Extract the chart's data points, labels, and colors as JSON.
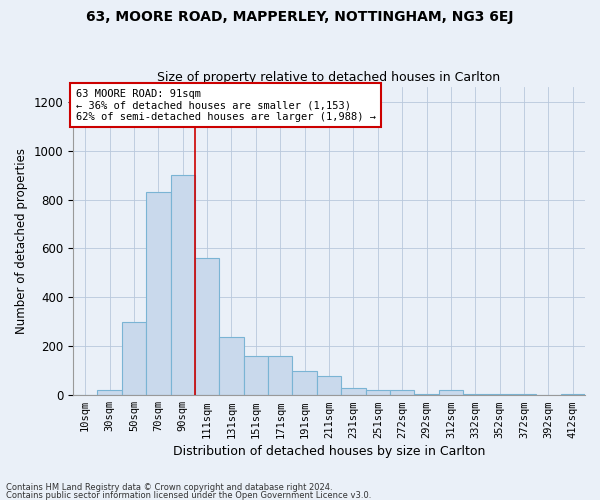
{
  "title1": "63, MOORE ROAD, MAPPERLEY, NOTTINGHAM, NG3 6EJ",
  "title2": "Size of property relative to detached houses in Carlton",
  "xlabel": "Distribution of detached houses by size in Carlton",
  "ylabel": "Number of detached properties",
  "bar_labels": [
    "10sqm",
    "30sqm",
    "50sqm",
    "70sqm",
    "90sqm",
    "111sqm",
    "131sqm",
    "151sqm",
    "171sqm",
    "191sqm",
    "211sqm",
    "231sqm",
    "251sqm",
    "272sqm",
    "292sqm",
    "312sqm",
    "332sqm",
    "352sqm",
    "372sqm",
    "392sqm",
    "412sqm"
  ],
  "bar_values": [
    0,
    20,
    300,
    830,
    900,
    560,
    240,
    160,
    160,
    100,
    80,
    30,
    20,
    20,
    5,
    20,
    5,
    5,
    5,
    0,
    5
  ],
  "bar_color": "#c9d9ec",
  "bar_edge_color": "#7ab4d4",
  "property_line_x": 4.5,
  "property_line_color": "#cc0000",
  "annotation_title": "63 MOORE ROAD: 91sqm",
  "annotation_line1": "← 36% of detached houses are smaller (1,153)",
  "annotation_line2": "62% of semi-detached houses are larger (1,988) →",
  "annotation_box_color": "white",
  "annotation_box_edge_color": "#cc0000",
  "ylim": [
    0,
    1260
  ],
  "yticks": [
    0,
    200,
    400,
    600,
    800,
    1000,
    1200
  ],
  "footer1": "Contains HM Land Registry data © Crown copyright and database right 2024.",
  "footer2": "Contains public sector information licensed under the Open Government Licence v3.0.",
  "bg_color": "#eaf0f8",
  "plot_bg_color": "#eaf0f8"
}
